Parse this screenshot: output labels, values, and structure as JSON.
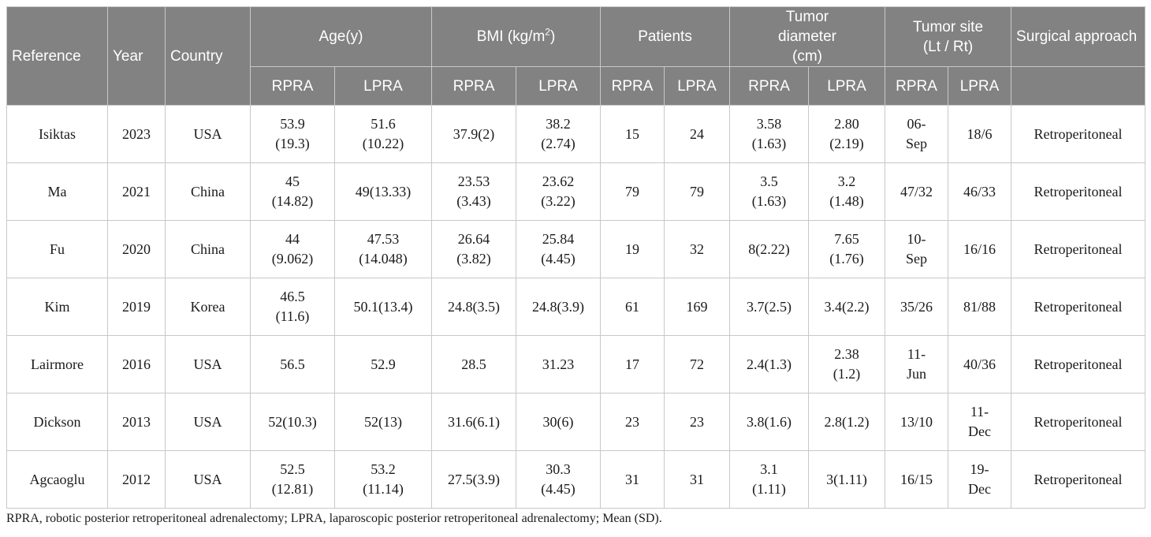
{
  "headers": {
    "reference": "Reference",
    "year": "Year",
    "country": "Country",
    "age": "Age(y)",
    "bmi_pre": "BMI (kg/m",
    "bmi_sup": "2",
    "bmi_post": ")",
    "patients": "Patients",
    "tumor_diameter": "Tumor diameter (cm)",
    "tumor_site": "Tumor site (Lt / Rt)",
    "surgical_approach": "Surgical approach",
    "sub": [
      "RPRA",
      "LPRA",
      "RPRA",
      "LPRA",
      "RPRA",
      "LPRA",
      "RPRA",
      "LPRA",
      "RPRA",
      "LPRA"
    ]
  },
  "rows": [
    {
      "reference": "Isiktas",
      "year": "2023",
      "country": "USA",
      "age_rpra": "53.9\n(19.3)",
      "age_lpra": "51.6\n(10.22)",
      "bmi_rpra": "37.9(2)",
      "bmi_lpra": "38.2\n(2.74)",
      "patients_rpra": "15",
      "patients_lpra": "24",
      "diam_rpra": "3.58\n(1.63)",
      "diam_lpra": "2.80\n(2.19)",
      "site_rpra": "06-\nSep",
      "site_lpra": "18/6",
      "approach": "Retroperitoneal"
    },
    {
      "reference": "Ma",
      "year": "2021",
      "country": "China",
      "age_rpra": "45\n(14.82)",
      "age_lpra": "49(13.33)",
      "bmi_rpra": "23.53\n(3.43)",
      "bmi_lpra": "23.62\n(3.22)",
      "patients_rpra": "79",
      "patients_lpra": "79",
      "diam_rpra": "3.5\n(1.63)",
      "diam_lpra": "3.2\n(1.48)",
      "site_rpra": "47/32",
      "site_lpra": "46/33",
      "approach": "Retroperitoneal"
    },
    {
      "reference": "Fu",
      "year": "2020",
      "country": "China",
      "age_rpra": "44\n(9.062)",
      "age_lpra": "47.53\n(14.048)",
      "bmi_rpra": "26.64\n(3.82)",
      "bmi_lpra": "25.84\n(4.45)",
      "patients_rpra": "19",
      "patients_lpra": "32",
      "diam_rpra": "8(2.22)",
      "diam_lpra": "7.65\n(1.76)",
      "site_rpra": "10-\nSep",
      "site_lpra": "16/16",
      "approach": "Retroperitoneal"
    },
    {
      "reference": "Kim",
      "year": "2019",
      "country": "Korea",
      "age_rpra": "46.5\n(11.6)",
      "age_lpra": "50.1(13.4)",
      "bmi_rpra": "24.8(3.5)",
      "bmi_lpra": "24.8(3.9)",
      "patients_rpra": "61",
      "patients_lpra": "169",
      "diam_rpra": "3.7(2.5)",
      "diam_lpra": "3.4(2.2)",
      "site_rpra": "35/26",
      "site_lpra": "81/88",
      "approach": "Retroperitoneal"
    },
    {
      "reference": "Lairmore",
      "year": "2016",
      "country": "USA",
      "age_rpra": "56.5",
      "age_lpra": "52.9",
      "bmi_rpra": "28.5",
      "bmi_lpra": "31.23",
      "patients_rpra": "17",
      "patients_lpra": "72",
      "diam_rpra": "2.4(1.3)",
      "diam_lpra": "2.38\n(1.2)",
      "site_rpra": "11-\nJun",
      "site_lpra": "40/36",
      "approach": "Retroperitoneal"
    },
    {
      "reference": "Dickson",
      "year": "2013",
      "country": "USA",
      "age_rpra": "52(10.3)",
      "age_lpra": "52(13)",
      "bmi_rpra": "31.6(6.1)",
      "bmi_lpra": "30(6)",
      "patients_rpra": "23",
      "patients_lpra": "23",
      "diam_rpra": "3.8(1.6)",
      "diam_lpra": "2.8(1.2)",
      "site_rpra": "13/10",
      "site_lpra": "11-\nDec",
      "approach": "Retroperitoneal"
    },
    {
      "reference": "Agcaoglu",
      "year": "2012",
      "country": "USA",
      "age_rpra": "52.5\n(12.81)",
      "age_lpra": "53.2\n(11.14)",
      "bmi_rpra": "27.5(3.9)",
      "bmi_lpra": "30.3\n(4.45)",
      "patients_rpra": "31",
      "patients_lpra": "31",
      "diam_rpra": "3.1\n(1.11)",
      "diam_lpra": "3(1.11)",
      "site_rpra": "16/15",
      "site_lpra": "19-\nDec",
      "approach": "Retroperitoneal"
    }
  ],
  "caption": "RPRA, robotic posterior retroperitoneal adrenalectomy; LPRA, laparoscopic posterior retroperitoneal adrenalectomy; Mean (SD)."
}
